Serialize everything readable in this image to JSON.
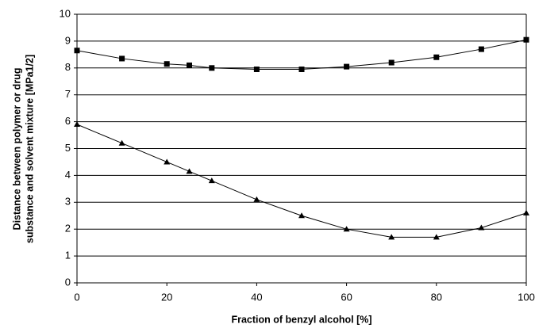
{
  "chart_data": {
    "type": "line",
    "x_label": "Fraction of benzyl alcohol [%]",
    "y_label": [
      "Distance between polymer or drug",
      "substance and solvent mixture [MPa1/2]"
    ],
    "x": [
      0,
      10,
      20,
      25,
      30,
      40,
      50,
      60,
      70,
      80,
      90,
      100
    ],
    "series": [
      {
        "color": "#000000",
        "marker": "square",
        "values": [
          8.65,
          8.35,
          8.15,
          8.1,
          8.0,
          7.95,
          7.95,
          8.05,
          8.2,
          8.4,
          8.7,
          9.05
        ]
      },
      {
        "color": "#000000",
        "marker": "triangle",
        "values": [
          5.9,
          5.2,
          4.5,
          4.15,
          3.8,
          3.1,
          2.5,
          2.0,
          1.7,
          1.7,
          2.05,
          2.6
        ]
      }
    ],
    "xlim": [
      0,
      100
    ],
    "xticks": [
      0,
      20,
      40,
      60,
      80,
      100
    ],
    "ylim": [
      0,
      10
    ],
    "yticks": [
      0,
      1,
      2,
      3,
      4,
      5,
      6,
      7,
      8,
      9,
      10
    ],
    "grid": true
  }
}
